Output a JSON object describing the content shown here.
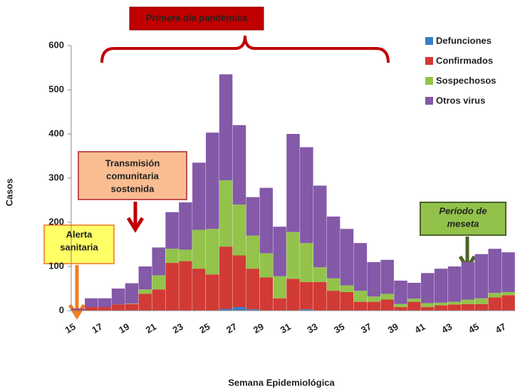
{
  "chart_data": {
    "type": "stacked_bar",
    "x_label": "Semana Epidemiológica",
    "y_label": "Casos",
    "categories": [
      "15",
      null,
      "17",
      null,
      "19",
      null,
      "21",
      null,
      "23",
      null,
      "25",
      null,
      "27",
      null,
      "29",
      null,
      "31",
      null,
      "33",
      null,
      "35",
      null,
      "37",
      null,
      "39",
      null,
      "41",
      null,
      "43",
      null,
      "45",
      null,
      "47"
    ],
    "series": [
      {
        "name": "Defunciones",
        "color": "#3b7dc8",
        "values": [
          0,
          0,
          0,
          0,
          0,
          0,
          0,
          0,
          0,
          0,
          0,
          4,
          8,
          3,
          0,
          0,
          0,
          3,
          0,
          0,
          0,
          0,
          0,
          0,
          0,
          0,
          0,
          0,
          0,
          0,
          0,
          0,
          0
        ]
      },
      {
        "name": "Confirmados",
        "color": "#d23a35",
        "values": [
          3,
          8,
          8,
          14,
          15,
          38,
          48,
          108,
          112,
          95,
          82,
          141,
          117,
          92,
          75,
          28,
          72,
          62,
          65,
          45,
          42,
          20,
          20,
          25,
          8,
          20,
          8,
          12,
          14,
          15,
          15,
          30,
          35
        ]
      },
      {
        "name": "Sospechosos",
        "color": "#93c34b",
        "values": [
          0,
          0,
          0,
          0,
          1,
          10,
          32,
          32,
          26,
          88,
          103,
          150,
          115,
          75,
          55,
          50,
          106,
          88,
          33,
          28,
          15,
          25,
          12,
          13,
          7,
          7,
          9,
          6,
          6,
          10,
          13,
          10,
          7
        ]
      },
      {
        "name": "Otros virus",
        "color": "#8459a8",
        "values": [
          2,
          20,
          20,
          36,
          46,
          52,
          63,
          83,
          107,
          152,
          218,
          240,
          180,
          87,
          148,
          112,
          222,
          217,
          185,
          140,
          128,
          108,
          78,
          77,
          53,
          36,
          68,
          77,
          80,
          85,
          100,
          100,
          90
        ]
      }
    ],
    "ylim": [
      0,
      600
    ],
    "yticks": [
      0,
      100,
      200,
      300,
      400,
      500,
      600
    ],
    "annotations": [
      {
        "lines": [
          "Primera ola pandémica"
        ]
      },
      {
        "lines": [
          "Transmisión",
          "comunitaria",
          "sostenida"
        ]
      },
      {
        "lines": [
          "Alerta",
          "sanitaria"
        ]
      },
      {
        "lines": [
          "Período de",
          "meseta"
        ]
      }
    ]
  }
}
